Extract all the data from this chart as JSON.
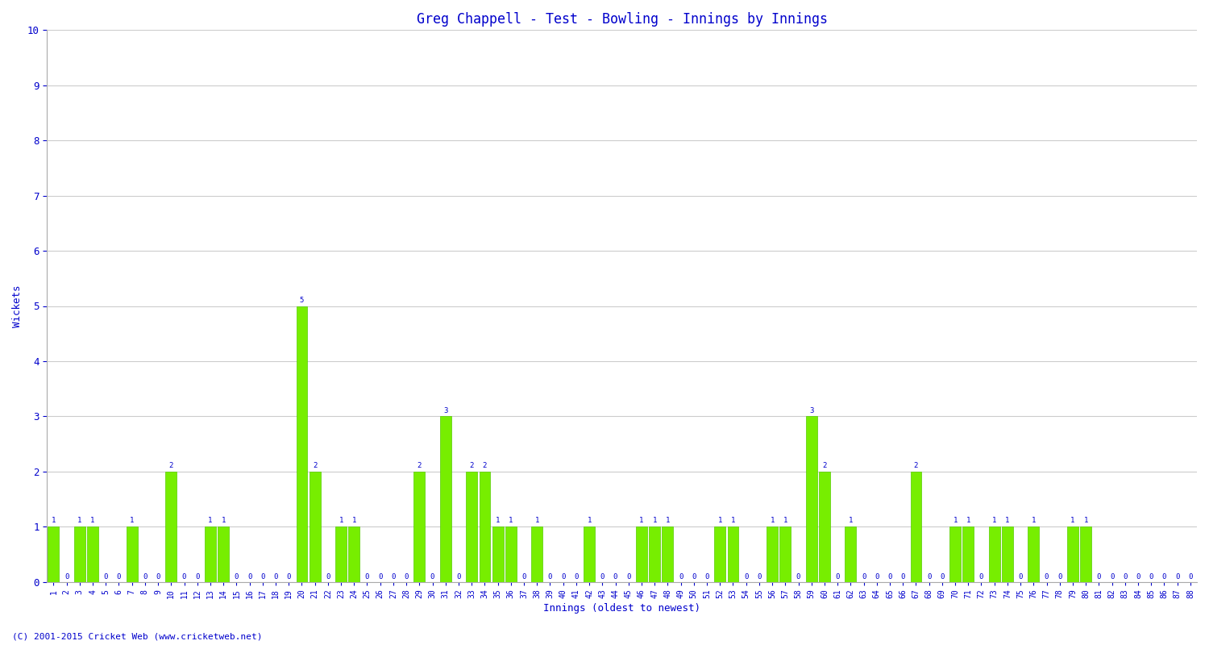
{
  "title": "Greg Chappell - Test - Bowling - Innings by Innings",
  "xlabel": "Innings (oldest to newest)",
  "ylabel": "Wickets",
  "bar_color": "#77ee00",
  "bar_edge_color": "#55cc00",
  "label_color": "#0000cc",
  "background_color": "#ffffff",
  "plot_bg_color": "#ffffff",
  "grid_color": "#cccccc",
  "ylim": [
    0,
    10
  ],
  "yticks": [
    0,
    1,
    2,
    3,
    4,
    5,
    6,
    7,
    8,
    9,
    10
  ],
  "innings_labels": [
    "1",
    "2",
    "3",
    "4",
    "5",
    "6",
    "7",
    "8",
    "9",
    "10",
    "11",
    "12",
    "13",
    "14",
    "15",
    "16",
    "17",
    "18",
    "19",
    "20",
    "21",
    "22",
    "23",
    "24",
    "25",
    "26",
    "27",
    "28",
    "29",
    "30",
    "31",
    "32",
    "33",
    "34",
    "35",
    "36",
    "37",
    "38",
    "39",
    "40",
    "41",
    "42",
    "43",
    "44",
    "45",
    "46",
    "47",
    "48",
    "49",
    "50",
    "51",
    "52",
    "53",
    "54",
    "55",
    "56",
    "57",
    "58",
    "59",
    "60",
    "61",
    "62",
    "63",
    "64",
    "65",
    "66",
    "67",
    "68",
    "69",
    "70",
    "71",
    "72",
    "73",
    "74",
    "75",
    "76",
    "77",
    "78",
    "79",
    "80",
    "81",
    "82",
    "83",
    "84",
    "85",
    "86",
    "87",
    "88"
  ],
  "values": [
    1,
    0,
    1,
    1,
    0,
    0,
    1,
    0,
    0,
    2,
    0,
    0,
    1,
    1,
    0,
    0,
    0,
    0,
    0,
    5,
    2,
    0,
    1,
    1,
    0,
    0,
    0,
    0,
    2,
    0,
    3,
    0,
    2,
    2,
    1,
    1,
    0,
    1,
    0,
    0,
    0,
    1,
    0,
    0,
    0,
    1,
    1,
    1,
    0,
    0,
    0,
    1,
    1,
    0,
    0,
    1,
    1,
    0,
    3,
    2,
    0,
    1,
    0,
    0,
    0,
    0,
    2,
    0,
    0,
    1,
    1,
    0,
    1,
    1,
    0,
    1,
    0,
    0,
    1,
    1,
    0,
    0,
    0,
    0,
    0,
    0,
    0,
    0
  ],
  "footnote": "(C) 2001-2015 Cricket Web (www.cricketweb.net)"
}
